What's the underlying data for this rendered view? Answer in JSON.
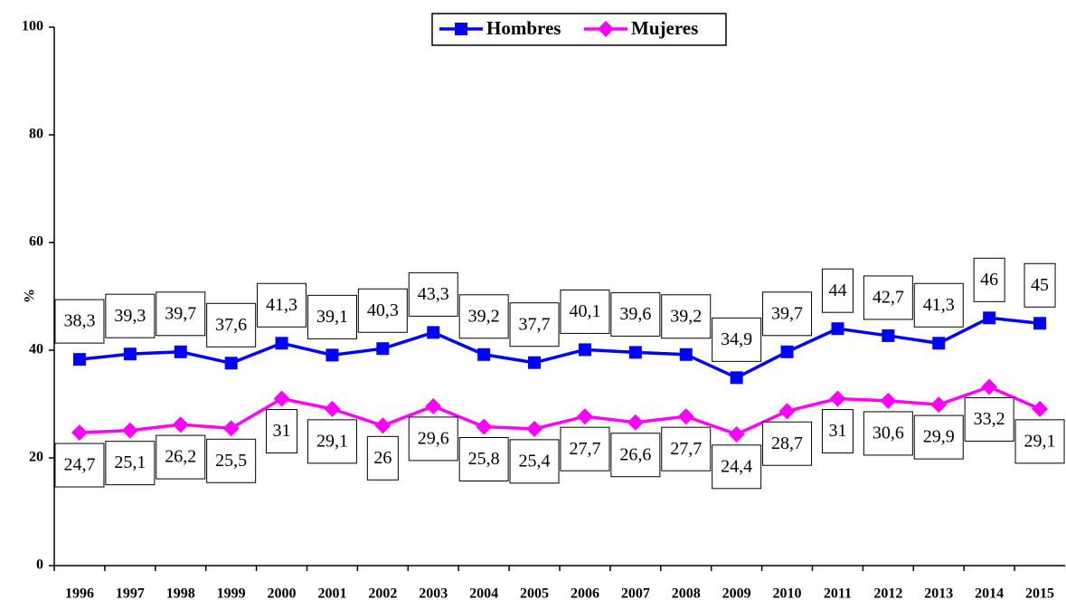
{
  "chart_data": {
    "type": "line",
    "categories": [
      "1996",
      "1997",
      "1998",
      "1999",
      "2000",
      "2001",
      "2002",
      "2003",
      "2004",
      "2005",
      "2006",
      "2007",
      "2008",
      "2009",
      "2010",
      "2011",
      "2012",
      "2013",
      "2014",
      "2015"
    ],
    "series": [
      {
        "name": "Hombres",
        "color": "#0000ff",
        "marker": "square",
        "values": [
          38.3,
          39.3,
          39.7,
          37.6,
          41.3,
          39.1,
          40.3,
          43.3,
          39.2,
          37.7,
          40.1,
          39.6,
          39.2,
          34.9,
          39.7,
          44,
          42.7,
          41.3,
          46,
          45
        ],
        "value_labels": [
          "38,3",
          "39,3",
          "39,7",
          "37,6",
          "41,3",
          "39,1",
          "40,3",
          "43,3",
          "39,2",
          "37,7",
          "40,1",
          "39,6",
          "39,2",
          "34,9",
          "39,7",
          "44",
          "42,7",
          "41,3",
          "46",
          "45"
        ]
      },
      {
        "name": "Mujeres",
        "color": "#ff00ff",
        "marker": "diamond",
        "values": [
          24.7,
          25.1,
          26.2,
          25.5,
          31,
          29.1,
          26,
          29.6,
          25.8,
          25.4,
          27.7,
          26.6,
          27.7,
          24.4,
          28.7,
          31,
          30.6,
          29.9,
          33.2,
          29.1
        ],
        "value_labels": [
          "24,7",
          "25,1",
          "26,2",
          "25,5",
          "31",
          "29,1",
          "26",
          "29,6",
          "25,8",
          "25,4",
          "27,7",
          "26,6",
          "27,7",
          "24,4",
          "28,7",
          "31",
          "30,6",
          "29,9",
          "33,2",
          "29,1"
        ]
      }
    ],
    "y_label": "%",
    "ylim": [
      0,
      100
    ],
    "yticks": [
      0,
      20,
      40,
      60,
      80,
      100
    ],
    "legend": "top"
  }
}
